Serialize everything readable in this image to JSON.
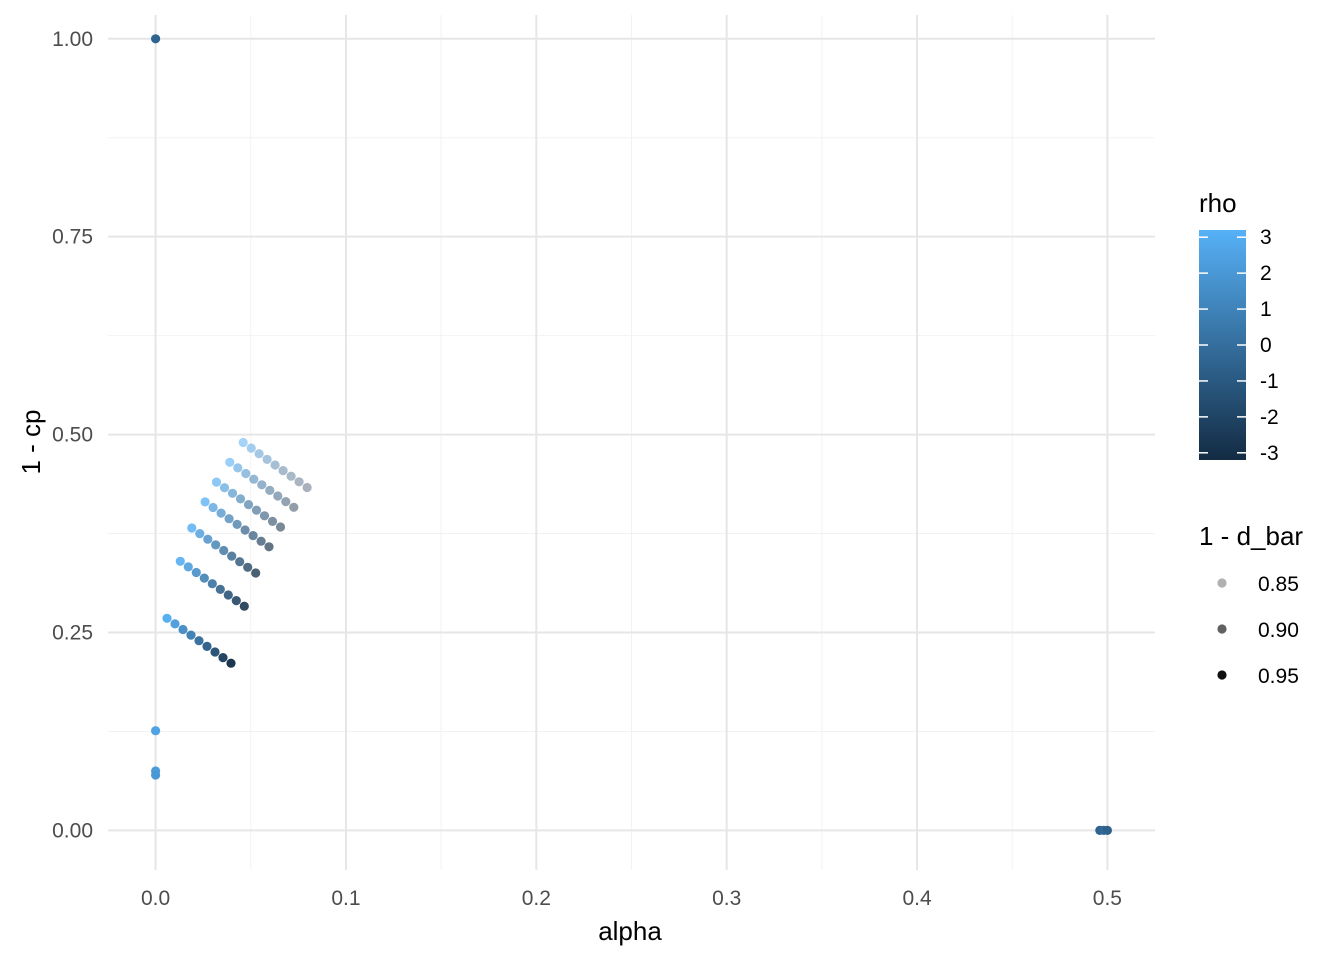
{
  "chart_data": {
    "type": "scatter",
    "xlabel": "alpha",
    "ylabel": "1 - cp",
    "xlim": [
      -0.025,
      0.525
    ],
    "ylim": [
      -0.05,
      1.03
    ],
    "x_ticks": [
      0.0,
      0.1,
      0.2,
      0.3,
      0.4,
      0.5
    ],
    "x_tick_labels": [
      "0.0",
      "0.1",
      "0.2",
      "0.3",
      "0.4",
      "0.5"
    ],
    "y_ticks": [
      0.0,
      0.25,
      0.5,
      0.75,
      1.0
    ],
    "y_tick_labels": [
      "0.00",
      "0.25",
      "0.50",
      "0.75",
      "1.00"
    ],
    "grid": true,
    "legend_placement": "right",
    "color_legend": {
      "title": "rho",
      "range": [
        -3.2,
        3.2
      ],
      "low_color": "#132B43",
      "high_color": "#56B1F7",
      "ticks": [
        3,
        2,
        1,
        0,
        -1,
        -2,
        -3
      ],
      "tick_labels": [
        "3",
        "2",
        "1",
        "0",
        "-1",
        "-2",
        "-3"
      ]
    },
    "alpha_legend": {
      "title": "1 - d_bar",
      "range": [
        0.82,
        0.96
      ],
      "values": [
        0.85,
        0.9,
        0.95
      ],
      "labels": [
        "0.85",
        "0.90",
        "0.95"
      ]
    },
    "points": [
      {
        "x": 0.0,
        "y": 1.0,
        "rho": -0.5,
        "d": 0.97
      },
      {
        "x": 0.0,
        "y": 0.126,
        "rho": 2.5,
        "d": 0.96
      },
      {
        "x": 0.0,
        "y": 0.075,
        "rho": 2.2,
        "d": 0.96
      },
      {
        "x": 0.0,
        "y": 0.07,
        "rho": 2.0,
        "d": 0.96
      },
      {
        "x": 0.496,
        "y": 0.0,
        "rho": -0.5,
        "d": 0.97
      },
      {
        "x": 0.498,
        "y": 0.0,
        "rho": -0.3,
        "d": 0.97
      },
      {
        "x": 0.5,
        "y": 0.0,
        "rho": -0.6,
        "d": 0.97
      }
    ],
    "fan": {
      "branches": 7,
      "points_per_branch": 9,
      "start_x": [
        0.006,
        0.013,
        0.019,
        0.026,
        0.032,
        0.039,
        0.046
      ],
      "start_y": [
        0.268,
        0.34,
        0.382,
        0.415,
        0.44,
        0.465,
        0.49
      ],
      "rho_range": [
        3.0,
        -3.0
      ]
    }
  }
}
